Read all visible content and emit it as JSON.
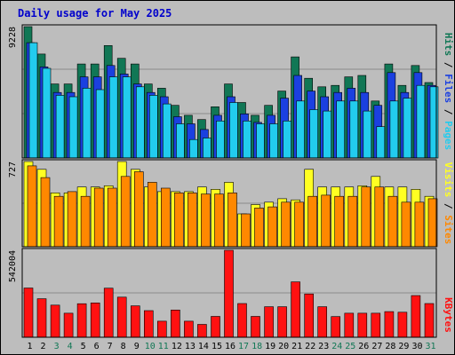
{
  "chart_data": {
    "type": "bar",
    "title": "Daily usage for May 2025",
    "categories": [
      "1",
      "2",
      "3",
      "4",
      "5",
      "6",
      "7",
      "8",
      "9",
      "10",
      "11",
      "12",
      "13",
      "14",
      "15",
      "16",
      "17",
      "18",
      "19",
      "20",
      "21",
      "22",
      "23",
      "24",
      "25",
      "26",
      "27",
      "28",
      "29",
      "30",
      "31"
    ],
    "weekend_days": [
      "3",
      "4",
      "10",
      "11",
      "17",
      "18",
      "24",
      "25",
      "31"
    ],
    "colors": {
      "hits": "#117755",
      "files": "#1b40e0",
      "pages": "#22ccee",
      "visits": "#ffff22",
      "sites": "#ff8800",
      "kbytes": "#ff1111",
      "weekday_label": "#000000",
      "weekend_label": "#117755",
      "title": "#0000cc",
      "background": "#bdbdbd"
    },
    "panels": [
      {
        "name": "hits-files-pages",
        "max_label": "9228",
        "ymax": 9228,
        "series": [
          {
            "name": "Hits",
            "color": "#117755",
            "values": [
              9228,
              7300,
              5200,
              5200,
              6600,
              6600,
              7900,
              7000,
              6600,
              5200,
              4900,
              3700,
              3000,
              2700,
              3600,
              5200,
              3900,
              3000,
              3700,
              4700,
              7100,
              5600,
              5000,
              5100,
              5700,
              5800,
              4000,
              6600,
              5100,
              6500,
              5300
            ]
          },
          {
            "name": "Files",
            "color": "#1b40e0",
            "values": [
              8100,
              6400,
              4600,
              4600,
              5700,
              5700,
              6500,
              5900,
              5200,
              4600,
              4300,
              2900,
              2400,
              2000,
              3000,
              4300,
              3100,
              2500,
              3000,
              4200,
              5800,
              4700,
              4300,
              4600,
              4900,
              4600,
              3700,
              6000,
              4600,
              6000,
              5100
            ]
          },
          {
            "name": "Pages",
            "color": "#22ccee",
            "values": [
              8100,
              6300,
              4400,
              4300,
              4900,
              4800,
              5700,
              5700,
              5000,
              4400,
              3800,
              2400,
              1300,
              1400,
              2600,
              3900,
              2600,
              2400,
              2400,
              2600,
              4000,
              3400,
              3300,
              4000,
              4000,
              3300,
              2200,
              4000,
              4200,
              5100,
              5000
            ]
          }
        ]
      },
      {
        "name": "visits-sites",
        "max_label": "727",
        "ymax": 727,
        "series": [
          {
            "name": "Visits",
            "color": "#ffff22",
            "values": [
              727,
              660,
              460,
              460,
              510,
              510,
              520,
              727,
              660,
              510,
              470,
              470,
              470,
              510,
              490,
              550,
              280,
              360,
              380,
              410,
              400,
              660,
              510,
              510,
              510,
              520,
              600,
              510,
              510,
              490,
              430
            ]
          },
          {
            "name": "Sites",
            "color": "#ff8800",
            "values": [
              690,
              590,
              430,
              470,
              430,
              500,
              500,
              600,
              640,
              550,
              500,
              460,
              460,
              450,
              450,
              460,
              280,
              330,
              340,
              380,
              380,
              430,
              440,
              430,
              430,
              510,
              510,
              430,
              380,
              380,
              410
            ]
          }
        ]
      },
      {
        "name": "kbytes",
        "max_label": "542004",
        "ymax": 542004,
        "series": [
          {
            "name": "KBytes",
            "color": "#ff1111",
            "values": [
              307000,
              240000,
              200000,
              150000,
              209000,
              214000,
              306000,
              250000,
              196000,
              166000,
              100000,
              170000,
              100000,
              80000,
              130000,
              542004,
              210000,
              130000,
              190000,
              190000,
              345000,
              270000,
              190000,
              129000,
              150000,
              150000,
              150000,
              160000,
              156000,
              260000,
              210000
            ]
          }
        ]
      }
    ],
    "legend": {
      "panel1": [
        {
          "text": "Hits",
          "color": "#117755"
        },
        {
          "text": " / ",
          "color": "#000000"
        },
        {
          "text": "Files",
          "color": "#1b40e0"
        },
        {
          "text": " / ",
          "color": "#000000"
        },
        {
          "text": "Pages",
          "color": "#22ccee"
        }
      ],
      "panel2": [
        {
          "text": "Visits",
          "color": "#ffff22"
        },
        {
          "text": " / ",
          "color": "#000000"
        },
        {
          "text": "Sites",
          "color": "#ff8800"
        }
      ],
      "panel3": [
        {
          "text": "KBytes",
          "color": "#ff1111"
        }
      ]
    }
  }
}
